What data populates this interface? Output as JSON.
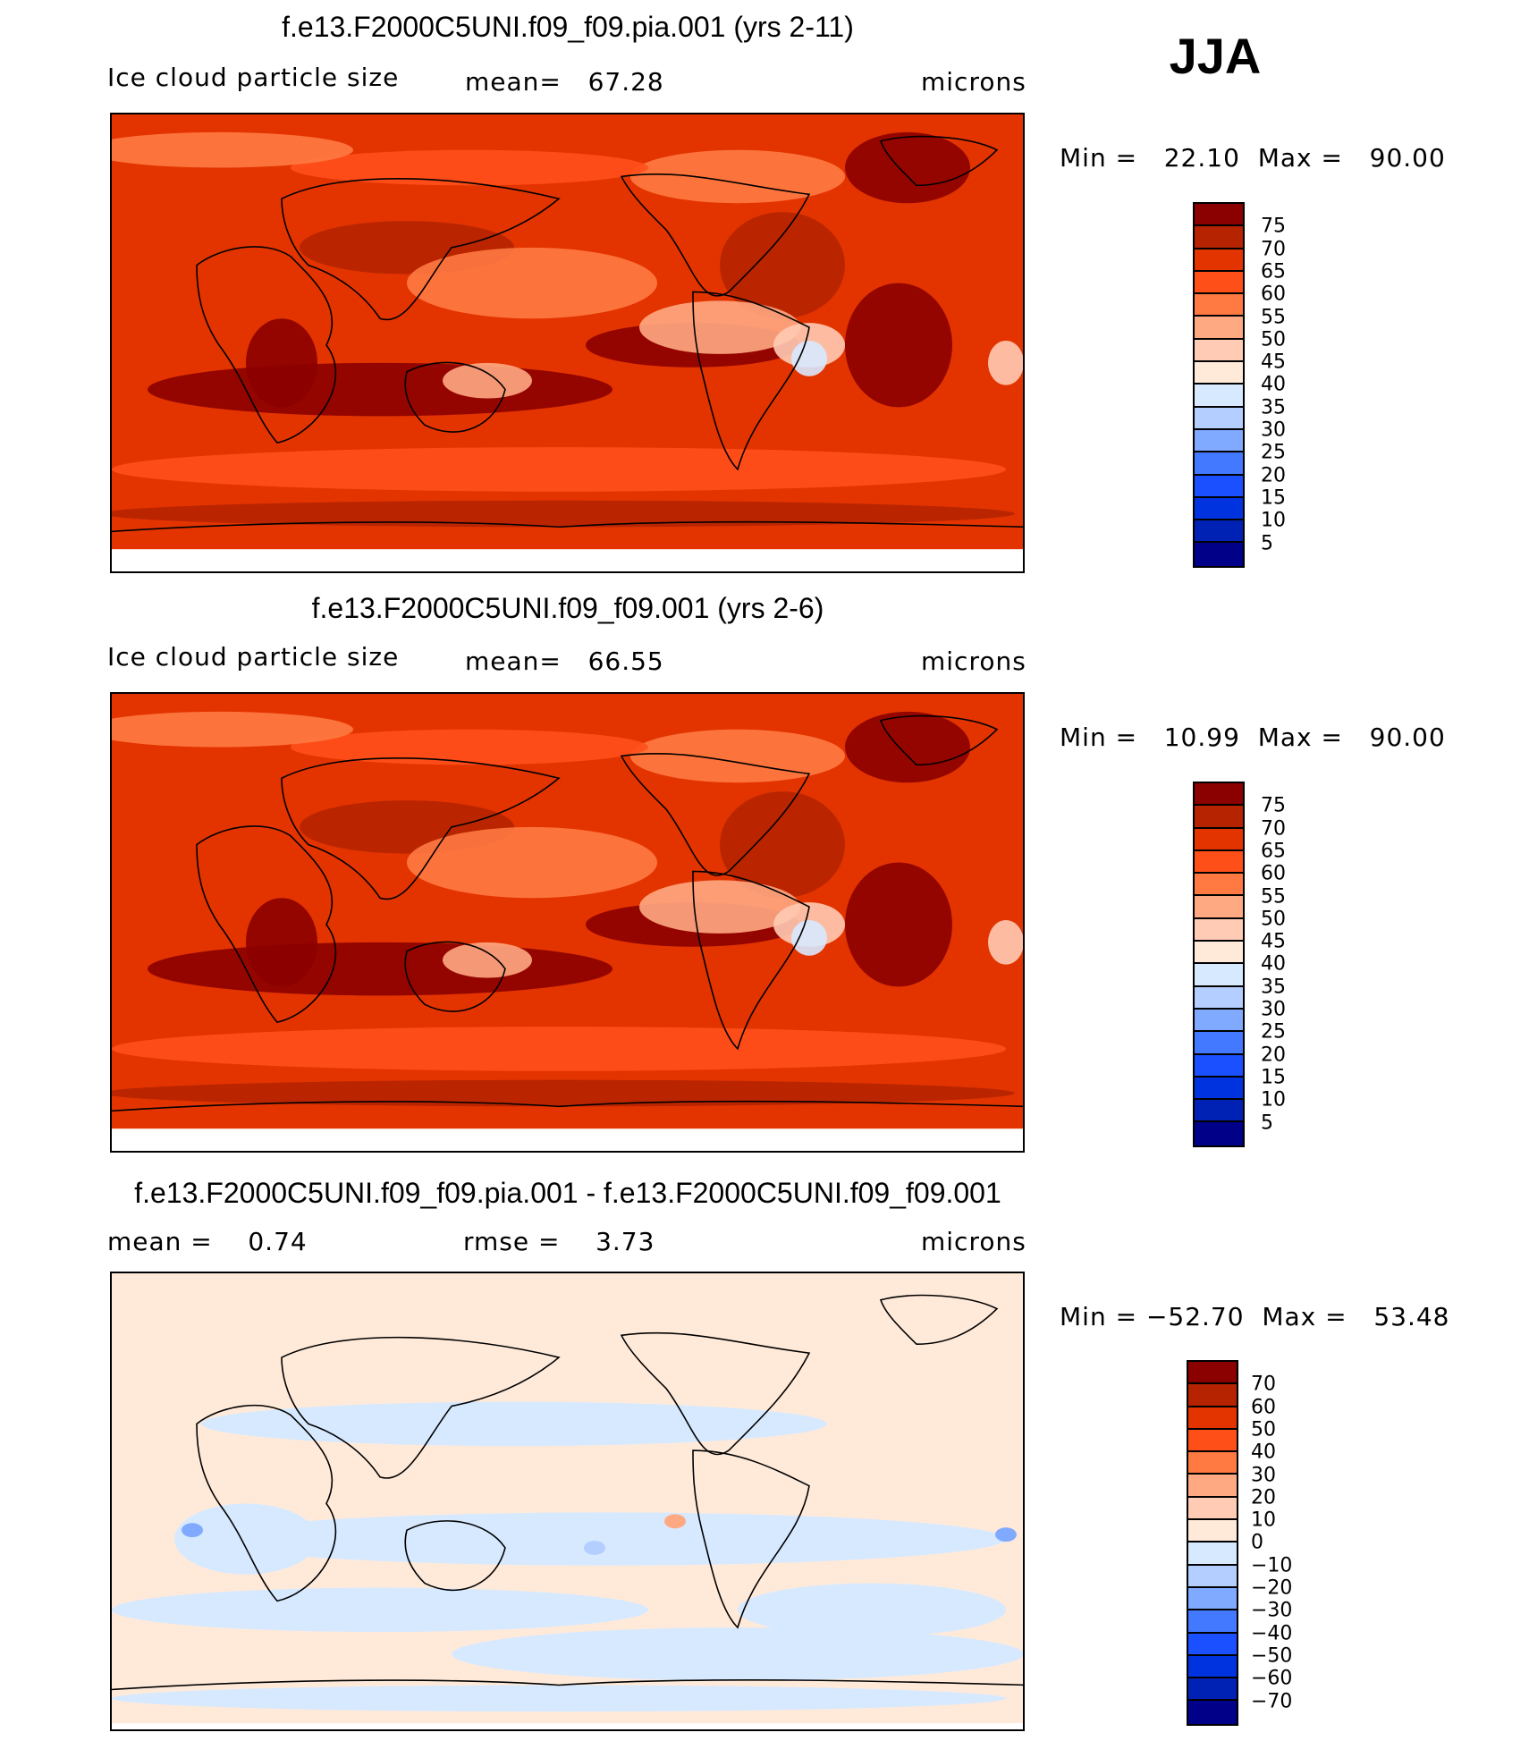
{
  "season": "JJA",
  "chart_data": [
    {
      "type": "heatmap",
      "title": "f.e13.F2000C5UNI.f09_f09.pia.001 (yrs 2-11)",
      "variable": "Ice cloud particle size",
      "stat_text": "mean=   67.28",
      "units": "microns",
      "minmax_text": "Min =   22.10  Max =   90.00",
      "levels": [
        "75",
        "70",
        "65",
        "60",
        "55",
        "50",
        "45",
        "40",
        "35",
        "30",
        "25",
        "20",
        "15",
        "10",
        "5"
      ]
    },
    {
      "type": "heatmap",
      "title": "f.e13.F2000C5UNI.f09_f09.001 (yrs 2-6)",
      "variable": "Ice cloud particle size",
      "stat_text": "mean=   66.55",
      "units": "microns",
      "minmax_text": "Min =   10.99  Max =   90.00",
      "levels": [
        "75",
        "70",
        "65",
        "60",
        "55",
        "50",
        "45",
        "40",
        "35",
        "30",
        "25",
        "20",
        "15",
        "10",
        "5"
      ]
    },
    {
      "type": "heatmap",
      "title": "f.e13.F2000C5UNI.f09_f09.pia.001 - f.e13.F2000C5UNI.f09_f09.001",
      "variable": "mean =    0.74",
      "stat_text": "rmse =    3.73",
      "units": "microns",
      "minmax_text": "Min = −52.70  Max =   53.48",
      "levels": [
        "70",
        "60",
        "50",
        "40",
        "30",
        "20",
        "10",
        "0",
        "−10",
        "−20",
        "−30",
        "−40",
        "−50",
        "−60",
        "−70"
      ]
    }
  ],
  "colors": [
    "#8b0000",
    "#b52300",
    "#e33400",
    "#ff4f19",
    "#ff7a42",
    "#ffa982",
    "#ffcbb4",
    "#ffeada",
    "#d7e9ff",
    "#b3ceff",
    "#7faaff",
    "#4379ff",
    "#1a50ff",
    "#0033e0",
    "#0022b4",
    "#000088"
  ]
}
